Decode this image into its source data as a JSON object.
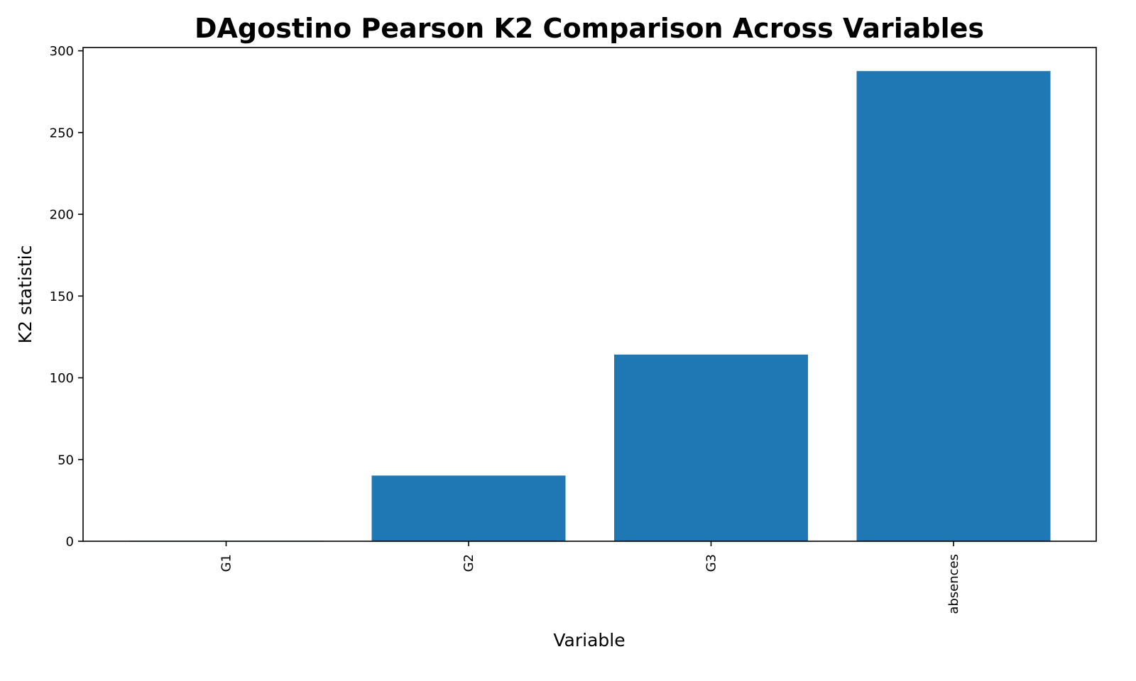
{
  "chart_data": {
    "type": "bar",
    "title": "DAgostino Pearson K2 Comparison Across Variables",
    "xlabel": "Variable",
    "ylabel": "K2 statistic",
    "categories": [
      "G1",
      "G2",
      "G3",
      "absences"
    ],
    "values": [
      0.3,
      40.2,
      114.2,
      287.6
    ],
    "ylim": [
      0,
      302
    ],
    "yticks": [
      0,
      50,
      100,
      150,
      200,
      250,
      300
    ],
    "ytick_labels": [
      "0",
      "50",
      "100",
      "150",
      "200",
      "250",
      "300"
    ],
    "grid": false,
    "legend": "none",
    "colors": {
      "bar": "#1f77b4",
      "axes": "#000000",
      "background": "#ffffff"
    }
  }
}
